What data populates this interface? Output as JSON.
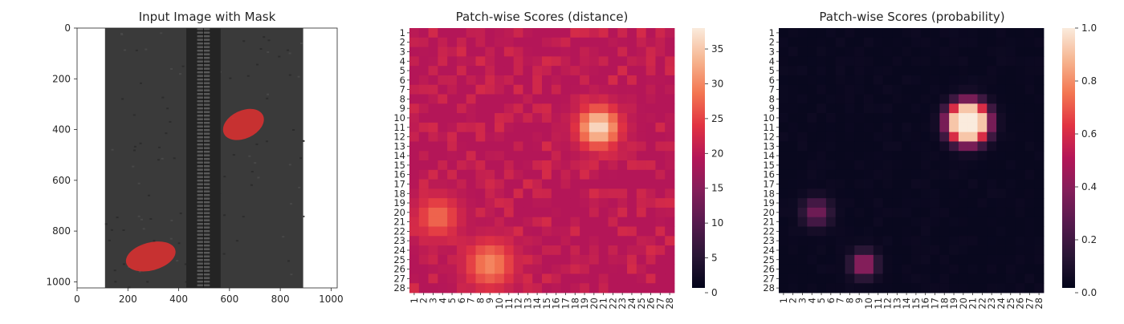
{
  "chart_data": [
    {
      "type": "image",
      "title": "Input Image with Mask",
      "x_ticks": [
        "0",
        "200",
        "400",
        "600",
        "800",
        "1000"
      ],
      "y_ticks": [
        "0",
        "200",
        "400",
        "600",
        "800",
        "1000"
      ],
      "xlim": [
        0,
        1024
      ],
      "ylim": [
        1024,
        0
      ],
      "fabric_x": [
        110,
        890
      ],
      "zipper_x": [
        430,
        565
      ],
      "mask_regions": [
        {
          "cx": 655,
          "cy": 380,
          "rx": 85,
          "ry": 55,
          "color": "#e03030"
        },
        {
          "cx": 290,
          "cy": 900,
          "rx": 100,
          "ry": 55,
          "color": "#e03030"
        }
      ],
      "colors": {
        "fabric": "#3a3a3a",
        "background": "#ffffff"
      }
    },
    {
      "type": "heatmap",
      "title": "Patch-wise Scores (distance)",
      "x_categories": [
        "1",
        "2",
        "3",
        "4",
        "5",
        "6",
        "7",
        "8",
        "9",
        "10",
        "11",
        "12",
        "13",
        "14",
        "15",
        "16",
        "17",
        "18",
        "19",
        "20",
        "21",
        "22",
        "23",
        "24",
        "25",
        "26",
        "27",
        "28"
      ],
      "y_categories": [
        "1",
        "2",
        "3",
        "4",
        "5",
        "6",
        "7",
        "8",
        "9",
        "10",
        "11",
        "12",
        "13",
        "14",
        "15",
        "16",
        "17",
        "18",
        "19",
        "20",
        "21",
        "22",
        "23",
        "24",
        "25",
        "26",
        "27",
        "28"
      ],
      "colorbar_ticks": [
        "0",
        "5",
        "10",
        "15",
        "20",
        "25",
        "30",
        "35"
      ],
      "vmin": 0,
      "vmax": 38,
      "background_value": 19,
      "hotspots": [
        {
          "row": 11,
          "col": 20.5,
          "peak": 37,
          "sigma": 1.5
        },
        {
          "row": 25.5,
          "col": 9,
          "peak": 30,
          "sigma": 1.8
        },
        {
          "row": 20.5,
          "col": 3.5,
          "peak": 28,
          "sigma": 1.6
        }
      ],
      "colormap": "rocket"
    },
    {
      "type": "heatmap",
      "title": "Patch-wise Scores (probability)",
      "x_categories": [
        "1",
        "2",
        "3",
        "4",
        "5",
        "6",
        "7",
        "8",
        "9",
        "10",
        "11",
        "12",
        "13",
        "14",
        "15",
        "16",
        "17",
        "18",
        "19",
        "20",
        "21",
        "22",
        "23",
        "24",
        "25",
        "26",
        "27",
        "28"
      ],
      "y_categories": [
        "1",
        "2",
        "3",
        "4",
        "5",
        "6",
        "7",
        "8",
        "9",
        "10",
        "11",
        "12",
        "13",
        "14",
        "15",
        "16",
        "17",
        "18",
        "19",
        "20",
        "21",
        "22",
        "23",
        "24",
        "25",
        "26",
        "27",
        "28"
      ],
      "colorbar_ticks": [
        "0.0",
        "0.2",
        "0.4",
        "0.6",
        "0.8",
        "1.0"
      ],
      "vmin": 0,
      "vmax": 1,
      "background_value": 0.02,
      "hotspots": [
        {
          "row": 10.5,
          "col": 20.5,
          "peak": 1.0,
          "sigma": 0.9,
          "plateau": 1.2
        },
        {
          "row": 25.5,
          "col": 9.5,
          "peak": 0.5,
          "sigma": 0.9
        },
        {
          "row": 20,
          "col": 4.5,
          "peak": 0.35,
          "sigma": 1.0
        }
      ],
      "colormap": "rocket"
    }
  ]
}
